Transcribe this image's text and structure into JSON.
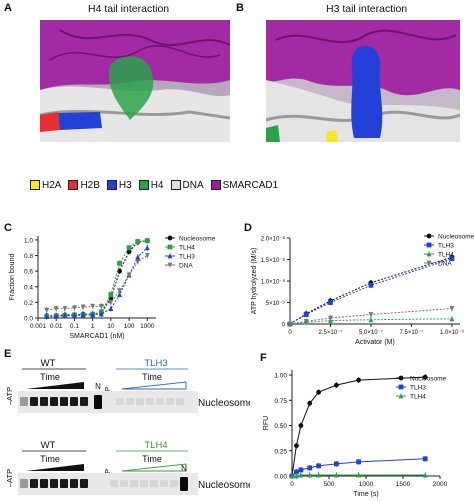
{
  "panels": {
    "a": {
      "letter": "A",
      "title": "H4 tail interaction"
    },
    "b": {
      "letter": "B",
      "title": "H3 tail interaction"
    },
    "c": {
      "letter": "C"
    },
    "d": {
      "letter": "D"
    },
    "e": {
      "letter": "E"
    },
    "f": {
      "letter": "F"
    }
  },
  "legend": [
    {
      "label": "H2A",
      "color": "#f5e62a"
    },
    {
      "label": "H2B",
      "color": "#e53030"
    },
    {
      "label": "H3",
      "color": "#2340d8"
    },
    {
      "label": "H4",
      "color": "#2aa34a"
    },
    {
      "label": "DNA",
      "color": "#dcdcdc"
    },
    {
      "label": "SMARCAD1",
      "color": "#9a1f9a"
    }
  ],
  "gels": {
    "top": {
      "wt": "WT",
      "mut": "TLH3",
      "minus_atp": "–ATP",
      "time_left": "Time",
      "time_right": "Time",
      "n": "N",
      "band": "Nucleosome",
      "mut_color": "#2a6fb0"
    },
    "bottom": {
      "wt": "WT",
      "mut": "TLH4",
      "minus_atp": "–ATP",
      "time_left": "Time",
      "time_right": "Time",
      "n": "N",
      "band": "Nucleosome",
      "mut_color": "#3a9a3a"
    }
  },
  "chart_data": [
    {
      "panel": "C",
      "type": "scatter",
      "xlabel": "SMARCAD1 (nM)",
      "ylabel": "Fraction bound",
      "xscale": "log",
      "xlim": [
        0.001,
        3000
      ],
      "ylim": [
        0,
        1.05
      ],
      "xticks": [
        "0.001",
        "0.01",
        "0.1",
        "1",
        "10",
        "100",
        "1000"
      ],
      "yticks": [
        "0.0",
        "0.2",
        "0.4",
        "0.6",
        "0.8",
        "1.0"
      ],
      "legend_position": "top-left",
      "series": [
        {
          "name": "Nucleosome",
          "color": "#111111",
          "marker": "circle",
          "x": [
            0.003,
            0.01,
            0.03,
            0.1,
            0.3,
            1,
            3,
            10,
            30,
            100,
            300,
            1000
          ],
          "y": [
            0.03,
            0.03,
            0.04,
            0.04,
            0.05,
            0.05,
            0.07,
            0.25,
            0.6,
            0.85,
            0.97,
            0.99
          ]
        },
        {
          "name": "TLH4",
          "color": "#2aa34a",
          "marker": "square",
          "x": [
            0.003,
            0.01,
            0.03,
            0.1,
            0.3,
            1,
            3,
            10,
            30,
            100,
            300,
            1000
          ],
          "y": [
            0.02,
            0.03,
            0.03,
            0.04,
            0.04,
            0.05,
            0.08,
            0.3,
            0.7,
            0.9,
            0.98,
            0.99
          ]
        },
        {
          "name": "TLH3",
          "color": "#2340d8",
          "marker": "triangle",
          "x": [
            0.003,
            0.01,
            0.03,
            0.1,
            0.3,
            1,
            3,
            10,
            30,
            100,
            300,
            1000
          ],
          "y": [
            0.02,
            0.02,
            0.03,
            0.03,
            0.04,
            0.04,
            0.05,
            0.12,
            0.3,
            0.55,
            0.78,
            0.9
          ]
        },
        {
          "name": "DNA",
          "color": "#777777",
          "marker": "triangle-down",
          "x": [
            0.003,
            0.01,
            0.03,
            0.1,
            0.3,
            1,
            3,
            10,
            30,
            100,
            300,
            1000
          ],
          "y": [
            0.1,
            0.12,
            0.12,
            0.13,
            0.14,
            0.15,
            0.15,
            0.2,
            0.35,
            0.55,
            0.72,
            0.8
          ]
        }
      ]
    },
    {
      "panel": "D",
      "type": "line",
      "xlabel": "Activator (M)",
      "ylabel": "ATP hydrolyzed (M/s)",
      "xlim": [
        0,
        1.05e-06
      ],
      "ylim": [
        0,
        2e-08
      ],
      "xticks": [
        "0",
        "2.5×10⁻⁷",
        "5.0×10⁻⁷",
        "7.5×10⁻⁷",
        "1.0×10⁻⁶"
      ],
      "yticks": [
        "0",
        "5×10⁻⁹",
        "1.0×10⁻⁸",
        "1.5×10⁻⁸",
        "2.0×10⁻⁸"
      ],
      "legend_position": "top-right",
      "series": [
        {
          "name": "Nucleosome",
          "color": "#111111",
          "marker": "circle",
          "x": [
            0,
            1e-07,
            2.5e-07,
            5e-07,
            1e-06
          ],
          "y": [
            0,
            2.4e-09,
            5.4e-09,
            9.6e-09,
            1.55e-08
          ]
        },
        {
          "name": "TLH3",
          "color": "#2340d8",
          "marker": "square",
          "x": [
            0,
            1e-07,
            2.5e-07,
            5e-07,
            1e-06
          ],
          "y": [
            0,
            2.2e-09,
            5e-09,
            9e-09,
            1.52e-08
          ]
        },
        {
          "name": "TLH4",
          "color": "#2aa34a",
          "marker": "triangle",
          "x": [
            0,
            1e-07,
            2.5e-07,
            5e-07,
            1e-06
          ],
          "y": [
            0,
            4e-10,
            8e-10,
            1e-09,
            1.2e-09
          ]
        },
        {
          "name": "DNA",
          "color": "#777777",
          "marker": "triangle-down",
          "x": [
            0,
            1e-07,
            2.5e-07,
            5e-07,
            1e-06
          ],
          "y": [
            0,
            6e-10,
            1.4e-09,
            2.2e-09,
            3.6e-09
          ]
        }
      ]
    },
    {
      "panel": "F",
      "type": "line",
      "xlabel": "Time (s)",
      "ylabel": "RFU",
      "xlim": [
        0,
        2000
      ],
      "ylim": [
        0,
        1.05
      ],
      "xticks": [
        "0",
        "500",
        "1000",
        "1500",
        "2000"
      ],
      "yticks": [
        "0.00",
        "0.25",
        "0.50",
        "0.75",
        "1.00"
      ],
      "legend_position": "top-right",
      "series": [
        {
          "name": "Nucleosome",
          "color": "#111111",
          "marker": "circle",
          "x": [
            0,
            60,
            120,
            240,
            360,
            600,
            900,
            1800
          ],
          "y": [
            0,
            0.3,
            0.5,
            0.72,
            0.83,
            0.9,
            0.95,
            0.98
          ]
        },
        {
          "name": "TLH3",
          "color": "#2340d8",
          "marker": "square",
          "x": [
            0,
            60,
            120,
            240,
            360,
            600,
            900,
            1800
          ],
          "y": [
            0,
            0.04,
            0.06,
            0.08,
            0.1,
            0.12,
            0.14,
            0.17
          ]
        },
        {
          "name": "TLH4",
          "color": "#2aa34a",
          "marker": "triangle",
          "x": [
            0,
            60,
            120,
            240,
            360,
            600,
            900,
            1800
          ],
          "y": [
            0,
            0,
            0.01,
            0.01,
            0.01,
            0.01,
            0.01,
            0.01
          ]
        }
      ]
    }
  ]
}
